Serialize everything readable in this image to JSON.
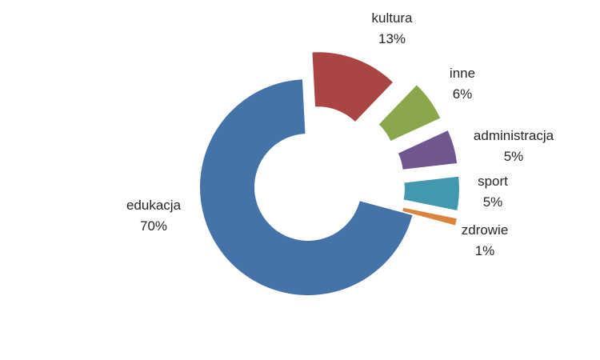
{
  "chart_data": {
    "type": "pie",
    "variant": "doughnut, exploded slices",
    "title": "",
    "legend": "none",
    "slices": [
      {
        "label": "kultura",
        "value": 13,
        "value_label": "13%",
        "color": "#A94643"
      },
      {
        "label": "inne",
        "value": 6,
        "value_label": "6%",
        "color": "#8BA74B"
      },
      {
        "label": "administracja",
        "value": 5,
        "value_label": "5%",
        "color": "#71578F"
      },
      {
        "label": "sport",
        "value": 5,
        "value_label": "5%",
        "color": "#4198AF"
      },
      {
        "label": "zdrowie",
        "value": 1,
        "value_label": "1%",
        "color": "#DB843D"
      },
      {
        "label": "edukacja",
        "value": 70,
        "value_label": "70%",
        "color": "#4572A7"
      }
    ]
  }
}
